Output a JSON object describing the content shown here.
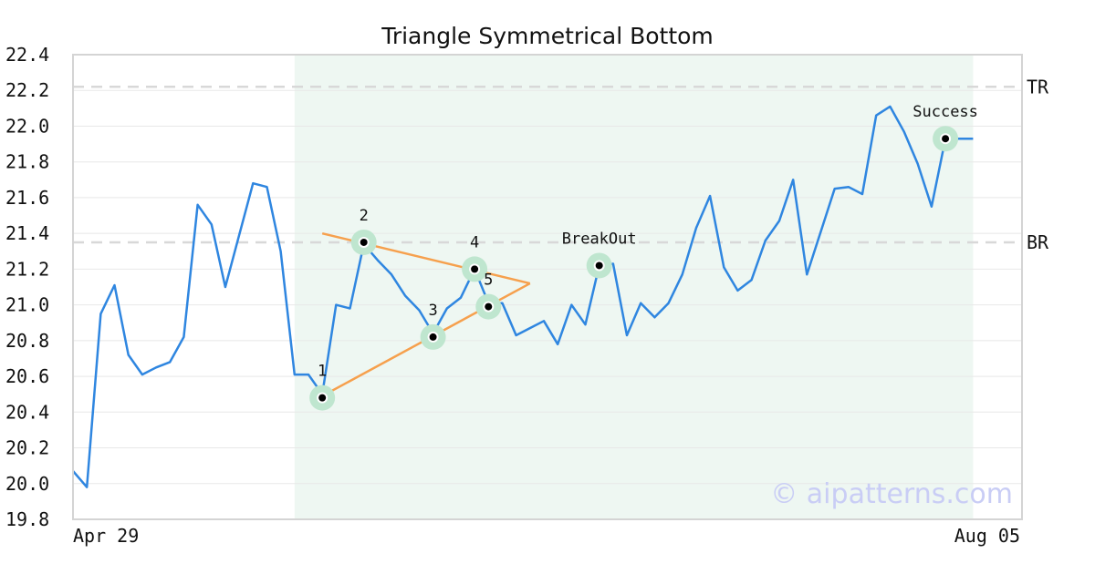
{
  "chart_data": {
    "type": "line",
    "title": "Triangle Symmetrical Bottom",
    "watermark": "© aipatterns.com",
    "x_labels": [
      "Apr 29",
      "Aug 05"
    ],
    "ylim": [
      19.8,
      22.4
    ],
    "y_ticks": [
      "19.8",
      "20.0",
      "20.2",
      "20.4",
      "20.6",
      "20.8",
      "21.0",
      "21.2",
      "21.4",
      "21.6",
      "21.8",
      "22.0",
      "22.2",
      "22.4"
    ],
    "grid": true,
    "colors": {
      "price": "#2f86e0",
      "trendline": "#f6a04d",
      "highlight": "#eef7f2",
      "marker_ring": "#bfe6cf",
      "level_line": "#d8d8d8"
    },
    "series": [
      {
        "values": [
          20.07,
          19.98,
          20.95,
          21.11,
          20.72,
          20.61,
          20.65,
          20.68,
          20.82,
          21.56,
          21.45,
          21.1,
          21.39,
          21.68,
          21.66,
          21.3,
          20.61,
          20.61,
          20.5,
          21.0,
          20.98,
          21.34,
          21.25,
          21.17,
          21.05,
          20.97,
          20.84,
          20.98,
          21.04,
          21.2,
          21.01,
          21.01,
          20.83,
          20.87,
          20.91,
          20.78,
          21.0,
          20.89,
          21.22,
          21.23,
          20.83,
          21.01,
          20.93,
          21.01,
          21.17,
          21.43,
          21.61,
          21.21,
          21.08,
          21.14,
          21.36,
          21.47,
          21.7,
          21.17,
          21.41,
          21.65,
          21.66,
          21.62,
          22.06,
          22.11,
          21.97,
          21.79,
          21.55,
          21.93,
          21.93,
          21.93
        ]
      }
    ],
    "highlight_range": [
      16,
      65
    ],
    "levels": [
      {
        "label": "TR",
        "value": 22.22
      },
      {
        "label": "BR",
        "value": 21.35
      }
    ],
    "trendlines": [
      {
        "from": [
          18,
          21.4
        ],
        "to": [
          33,
          21.12
        ]
      },
      {
        "from": [
          18,
          20.49
        ],
        "to": [
          33,
          21.12
        ]
      }
    ],
    "points": [
      {
        "label": "1",
        "x": 18,
        "y": 20.48
      },
      {
        "label": "2",
        "x": 21,
        "y": 21.35
      },
      {
        "label": "3",
        "x": 26,
        "y": 20.82
      },
      {
        "label": "4",
        "x": 29,
        "y": 21.2
      },
      {
        "label": "5",
        "x": 30,
        "y": 20.99
      },
      {
        "label": "BreakOut",
        "x": 38,
        "y": 21.22
      },
      {
        "label": "Success",
        "x": 63,
        "y": 21.93
      }
    ]
  }
}
